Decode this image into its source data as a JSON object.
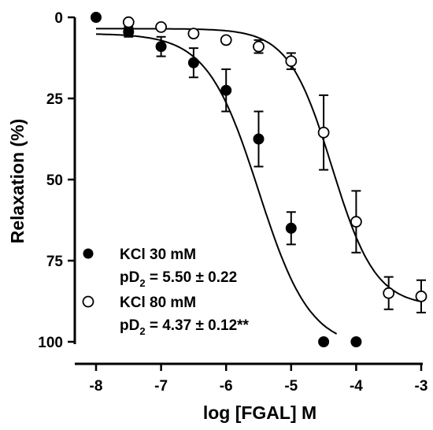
{
  "chart_data": {
    "type": "scatter",
    "title": "",
    "xlabel": "log [FGAL] M",
    "ylabel": "Relaxation (%)",
    "xlim": [
      -8,
      -3
    ],
    "ylim": [
      0,
      100
    ],
    "y_inverted": true,
    "x_ticks": [
      -8,
      -7,
      -6,
      -5,
      -4,
      -3
    ],
    "y_ticks": [
      0,
      25,
      50,
      75,
      100
    ],
    "x_tick_labels": [
      "-8",
      "-7",
      "-6",
      "-5",
      "-4",
      "-3"
    ],
    "y_tick_labels": [
      "0",
      "25",
      "50",
      "75",
      "100"
    ],
    "grid": false,
    "legend_position": "bottom-left",
    "series": [
      {
        "name": "KCl 30 mM",
        "marker": "filled-circle",
        "color": "#000000",
        "fit": {
          "pD2": 5.5,
          "bottom": 5,
          "top": 102,
          "hill": 1.1,
          "x_range": [
            -8,
            -4.3
          ]
        },
        "x": [
          -8,
          -7.5,
          -7,
          -6.5,
          -6,
          -5.5,
          -5,
          -4.5,
          -4
        ],
        "y": [
          0,
          4.5,
          9,
          14,
          22.5,
          37.5,
          65,
          100,
          100
        ],
        "err": [
          0,
          1.5,
          3,
          4.5,
          6.5,
          8.5,
          5,
          0,
          0
        ]
      },
      {
        "name": "KCl 80 mM",
        "marker": "open-circle",
        "color": "#000000",
        "fit": {
          "pD2": 4.37,
          "bottom": 3.5,
          "top": 89,
          "hill": 1.3,
          "x_range": [
            -8,
            -3
          ]
        },
        "x": [
          -7.5,
          -7,
          -6.5,
          -6,
          -5.5,
          -5,
          -4.5,
          -4,
          -3.5,
          -3
        ],
        "y": [
          1.5,
          3,
          5,
          7,
          9,
          13.5,
          35.5,
          63,
          85,
          86
        ],
        "err": [
          0,
          0,
          0,
          0,
          2,
          2.5,
          11.5,
          9.5,
          5,
          5
        ]
      }
    ],
    "legend": [
      {
        "marker": "filled-circle",
        "label": "KCl 30 mM",
        "stat_prefix": "pD",
        "stat_sub": "2",
        "stat_value": " = 5.50 ± 0.22"
      },
      {
        "marker": "open-circle",
        "label": "KCl 80 mM",
        "stat_prefix": "pD",
        "stat_sub": "2",
        "stat_value": " = 4.37 ± 0.12**"
      }
    ]
  }
}
